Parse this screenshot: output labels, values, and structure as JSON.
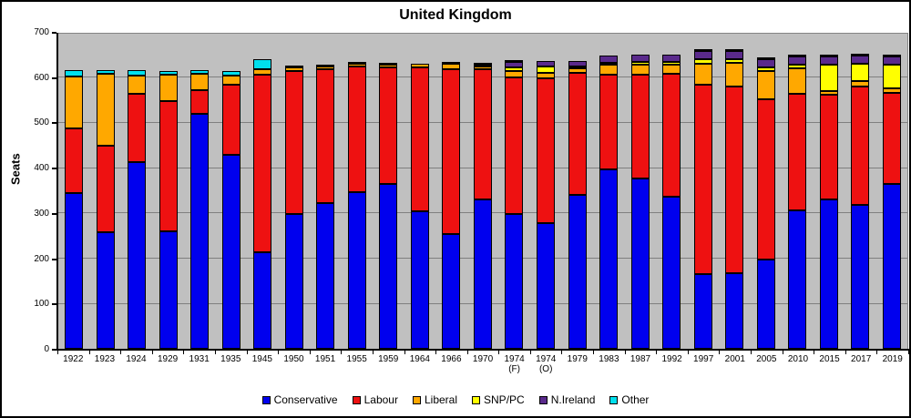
{
  "chart_data": {
    "type": "bar",
    "stacked": true,
    "title": "United Kingdom",
    "ylabel": "Seats",
    "ylim": [
      0,
      700
    ],
    "yticks": [
      0,
      100,
      200,
      300,
      400,
      500,
      600,
      700
    ],
    "grid": "horizontal",
    "legend_position": "bottom",
    "plot_bg_color": "#c0c0c0",
    "gridline_color": "#7f7f7f",
    "categories": [
      "1922",
      "1923",
      "1924",
      "1929",
      "1931",
      "1935",
      "1945",
      "1950",
      "1951",
      "1955",
      "1959",
      "1964",
      "1966",
      "1970",
      "1974 (F)",
      "1974 (O)",
      "1979",
      "1983",
      "1987",
      "1992",
      "1997",
      "2001",
      "2005",
      "2010",
      "2015",
      "2017",
      "2019"
    ],
    "series": [
      {
        "name": "Conservative",
        "color": "#0000ee",
        "values": [
          344,
          258,
          412,
          260,
          518,
          429,
          213,
          298,
          321,
          345,
          365,
          304,
          253,
          330,
          297,
          277,
          339,
          397,
          376,
          336,
          165,
          166,
          198,
          306,
          330,
          317,
          365
        ]
      },
      {
        "name": "Labour",
        "color": "#ee1111",
        "values": [
          142,
          191,
          151,
          287,
          52,
          154,
          393,
          315,
          295,
          277,
          258,
          317,
          364,
          288,
          301,
          319,
          269,
          209,
          229,
          271,
          418,
          412,
          355,
          258,
          232,
          262,
          202
        ]
      },
      {
        "name": "Liberal",
        "color": "#ffa800",
        "values": [
          115,
          158,
          40,
          59,
          37,
          21,
          12,
          9,
          6,
          6,
          6,
          9,
          12,
          6,
          14,
          13,
          11,
          23,
          22,
          20,
          46,
          52,
          62,
          57,
          8,
          12,
          11
        ]
      },
      {
        "name": "SNP/PC",
        "color": "#ffff00",
        "values": [
          0,
          0,
          0,
          0,
          0,
          0,
          0,
          0,
          0,
          0,
          0,
          0,
          0,
          1,
          9,
          14,
          4,
          4,
          6,
          7,
          10,
          9,
          9,
          9,
          59,
          39,
          52
        ]
      },
      {
        "name": "N.Ireland",
        "color": "#5a2a8c",
        "values": [
          0,
          0,
          0,
          0,
          0,
          0,
          0,
          0,
          0,
          0,
          0,
          0,
          0,
          0,
          12,
          12,
          12,
          17,
          17,
          17,
          18,
          18,
          18,
          18,
          18,
          18,
          18
        ]
      },
      {
        "name": "Other",
        "color": "#00e0ee",
        "values": [
          14,
          8,
          12,
          9,
          8,
          11,
          22,
          3,
          3,
          2,
          1,
          0,
          1,
          5,
          2,
          0,
          0,
          0,
          0,
          0,
          2,
          2,
          4,
          2,
          3,
          2,
          2
        ]
      }
    ]
  }
}
